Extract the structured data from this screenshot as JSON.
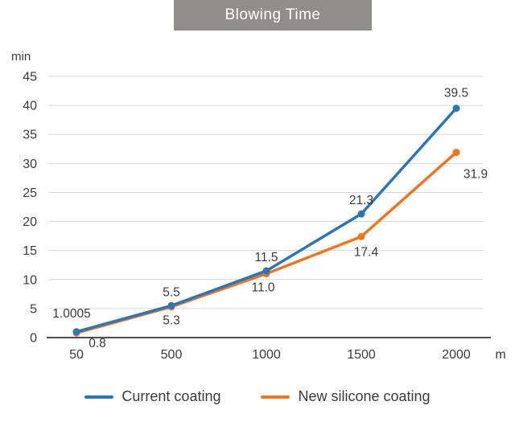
{
  "title": "Blowing Time",
  "axis_labels": {
    "y_unit": "min",
    "x_unit": "m"
  },
  "colors": {
    "title_bg": "#908e8d",
    "grid": "#d6d6d6",
    "axis": "#4f4f4f",
    "text": "#3a3a3a",
    "current_coating": "#2e75b6",
    "new_silicone_coating": "#ee7623"
  },
  "legend": {
    "items": [
      {
        "label": "Current coating",
        "color": "#2e75b6"
      },
      {
        "label": "New silicone coating",
        "color": "#ee7623"
      }
    ]
  },
  "chart_data": {
    "type": "line",
    "title": "Blowing Time",
    "xlabel": "m",
    "ylabel": "min",
    "categories": [
      "50",
      "500",
      "1000",
      "1500",
      "2000"
    ],
    "series": [
      {
        "name": "Current coating",
        "color": "#2e75b6",
        "values": [
          1.0005,
          5.5,
          11.5,
          21.3,
          39.5
        ],
        "point_labels": [
          "1.0005",
          "5.5",
          "11.5",
          "21.3",
          "39.5"
        ],
        "label_position": "above"
      },
      {
        "name": "New silicone coating",
        "color": "#ee7623",
        "values": [
          0.8,
          5.3,
          11.0,
          17.4,
          31.9
        ],
        "point_labels": [
          "0.8",
          "5.3",
          "11.0",
          "17.4",
          "31.9"
        ],
        "label_position": "below"
      }
    ],
    "ylim": [
      0,
      45
    ],
    "ytick_step": 5,
    "yticks": [
      0,
      5,
      10,
      15,
      20,
      25,
      30,
      35,
      40,
      45
    ],
    "grid": true,
    "legend_position": "bottom"
  }
}
